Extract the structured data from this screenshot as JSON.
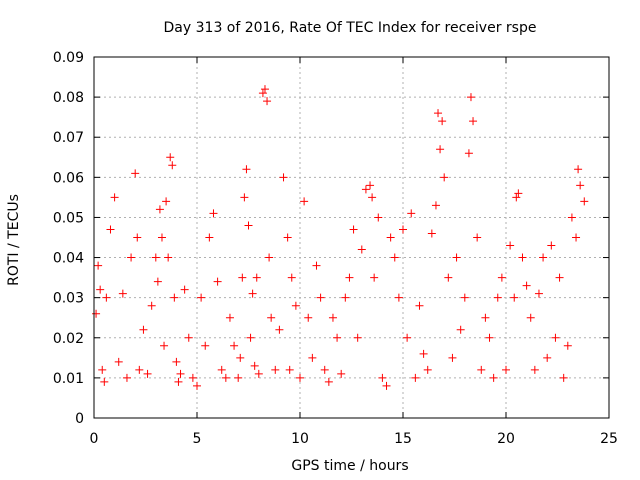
{
  "chart_data": {
    "type": "scatter",
    "title": "Day 313 of 2016, Rate Of TEC Index for receiver rspe",
    "xlabel": "GPS time / hours",
    "ylabel": "ROTI / TECUs",
    "xlim": [
      0,
      25
    ],
    "ylim": [
      0,
      0.09
    ],
    "xticks": [
      0,
      5,
      10,
      15,
      20,
      25
    ],
    "xtick_labels": [
      "0",
      "5",
      "10",
      "15",
      "20",
      "25"
    ],
    "yticks": [
      0,
      0.01,
      0.02,
      0.03,
      0.04,
      0.05,
      0.06,
      0.07,
      0.08,
      0.09
    ],
    "ytick_labels": [
      "0",
      "0.01",
      "0.02",
      "0.03",
      "0.04",
      "0.05",
      "0.06",
      "0.07",
      "0.08",
      "0.09"
    ],
    "grid": true,
    "marker": "+",
    "color": "#ff0000",
    "series": [
      {
        "name": "ROTI",
        "x": [
          0.1,
          0.2,
          0.3,
          0.4,
          0.5,
          0.6,
          0.8,
          1.0,
          1.2,
          1.4,
          1.6,
          1.8,
          2.0,
          2.1,
          2.2,
          2.4,
          2.6,
          2.8,
          3.0,
          3.1,
          3.2,
          3.3,
          3.4,
          3.5,
          3.6,
          3.7,
          3.8,
          3.9,
          4.0,
          4.1,
          4.2,
          4.4,
          4.6,
          4.8,
          5.0,
          5.2,
          5.4,
          5.6,
          5.8,
          6.0,
          6.2,
          6.4,
          6.6,
          6.8,
          7.0,
          7.1,
          7.2,
          7.3,
          7.4,
          7.5,
          7.6,
          7.7,
          7.8,
          7.9,
          8.0,
          8.2,
          8.3,
          8.4,
          8.5,
          8.6,
          8.8,
          9.0,
          9.2,
          9.4,
          9.5,
          9.6,
          9.8,
          10.0,
          10.2,
          10.4,
          10.6,
          10.8,
          11.0,
          11.2,
          11.4,
          11.6,
          11.8,
          12.0,
          12.2,
          12.4,
          12.6,
          12.8,
          13.0,
          13.2,
          13.4,
          13.5,
          13.6,
          13.8,
          14.0,
          14.2,
          14.4,
          14.6,
          14.8,
          15.0,
          15.2,
          15.4,
          15.6,
          15.8,
          16.0,
          16.2,
          16.4,
          16.6,
          16.7,
          16.8,
          16.9,
          17.0,
          17.2,
          17.4,
          17.6,
          17.8,
          18.0,
          18.2,
          18.3,
          18.4,
          18.6,
          18.8,
          19.0,
          19.2,
          19.4,
          19.6,
          19.8,
          20.0,
          20.2,
          20.4,
          20.5,
          20.6,
          20.8,
          21.0,
          21.2,
          21.4,
          21.6,
          21.8,
          22.0,
          22.2,
          22.4,
          22.6,
          22.8,
          23.0,
          23.2,
          23.4,
          23.5,
          23.6,
          23.8
        ],
        "y": [
          0.026,
          0.038,
          0.032,
          0.012,
          0.009,
          0.03,
          0.047,
          0.055,
          0.014,
          0.031,
          0.01,
          0.04,
          0.061,
          0.045,
          0.012,
          0.022,
          0.011,
          0.028,
          0.04,
          0.034,
          0.052,
          0.045,
          0.018,
          0.054,
          0.04,
          0.065,
          0.063,
          0.03,
          0.014,
          0.009,
          0.011,
          0.032,
          0.02,
          0.01,
          0.008,
          0.03,
          0.018,
          0.045,
          0.051,
          0.034,
          0.012,
          0.01,
          0.025,
          0.018,
          0.01,
          0.015,
          0.035,
          0.055,
          0.062,
          0.048,
          0.02,
          0.031,
          0.013,
          0.035,
          0.011,
          0.081,
          0.082,
          0.079,
          0.04,
          0.025,
          0.012,
          0.022,
          0.06,
          0.045,
          0.012,
          0.035,
          0.028,
          0.01,
          0.054,
          0.025,
          0.015,
          0.038,
          0.03,
          0.012,
          0.009,
          0.025,
          0.02,
          0.011,
          0.03,
          0.035,
          0.047,
          0.02,
          0.042,
          0.057,
          0.058,
          0.055,
          0.035,
          0.05,
          0.01,
          0.008,
          0.045,
          0.04,
          0.03,
          0.047,
          0.02,
          0.051,
          0.01,
          0.028,
          0.016,
          0.012,
          0.046,
          0.053,
          0.076,
          0.067,
          0.074,
          0.06,
          0.035,
          0.015,
          0.04,
          0.022,
          0.03,
          0.066,
          0.08,
          0.074,
          0.045,
          0.012,
          0.025,
          0.02,
          0.01,
          0.03,
          0.035,
          0.012,
          0.043,
          0.03,
          0.055,
          0.056,
          0.04,
          0.033,
          0.025,
          0.012,
          0.031,
          0.04,
          0.015,
          0.043,
          0.02,
          0.035,
          0.01,
          0.018,
          0.05,
          0.045,
          0.062,
          0.058,
          0.054
        ]
      }
    ]
  }
}
